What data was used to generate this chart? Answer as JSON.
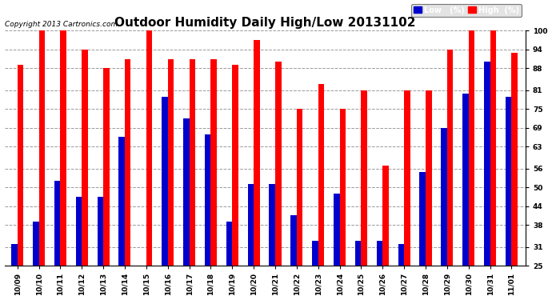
{
  "title": "Outdoor Humidity Daily High/Low 20131102",
  "copyright": "Copyright 2013 Cartronics.com",
  "categories": [
    "10/09",
    "10/10",
    "10/11",
    "10/12",
    "10/13",
    "10/14",
    "10/15",
    "10/16",
    "10/17",
    "10/18",
    "10/19",
    "10/20",
    "10/21",
    "10/22",
    "10/23",
    "10/24",
    "10/25",
    "10/26",
    "10/27",
    "10/28",
    "10/29",
    "10/30",
    "10/31",
    "11/01"
  ],
  "high": [
    89,
    100,
    100,
    94,
    88,
    91,
    100,
    91,
    91,
    91,
    89,
    97,
    90,
    75,
    83,
    75,
    81,
    57,
    81,
    81,
    94,
    100,
    100,
    93
  ],
  "low": [
    32,
    39,
    52,
    47,
    47,
    66,
    25,
    79,
    72,
    67,
    39,
    51,
    51,
    41,
    33,
    48,
    33,
    33,
    32,
    55,
    69,
    80,
    90,
    79
  ],
  "ylim_min": 25,
  "ylim_max": 100,
  "yticks": [
    25,
    31,
    38,
    44,
    50,
    56,
    63,
    69,
    75,
    81,
    88,
    94,
    100
  ],
  "bar_width": 0.28,
  "high_color": "#ff0000",
  "low_color": "#0000cc",
  "bg_color": "#ffffff",
  "grid_color": "#999999",
  "title_fontsize": 11,
  "tick_fontsize": 6.5,
  "legend_high_label": "High  (%)",
  "legend_low_label": "Low   (%)"
}
